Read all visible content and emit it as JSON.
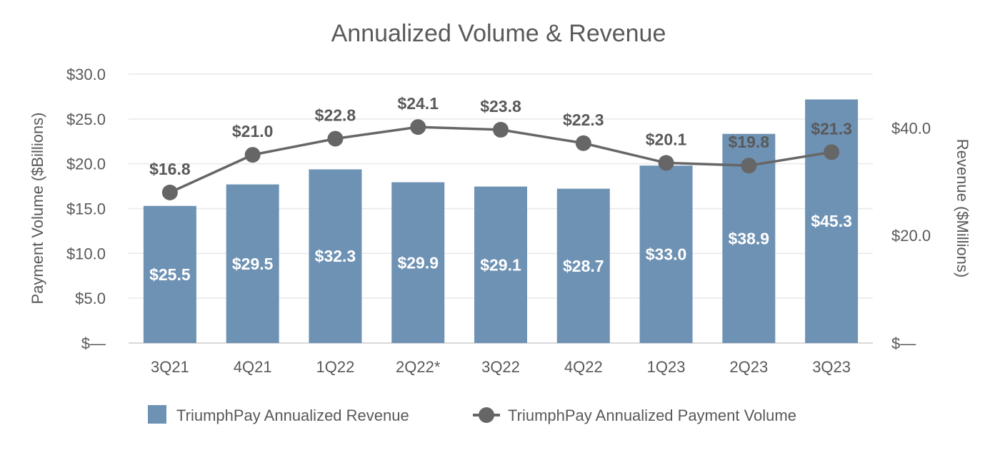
{
  "chart_data": {
    "type": "bar+line",
    "title": "Annualized Volume & Revenue",
    "categories": [
      "3Q21",
      "4Q21",
      "1Q22",
      "2Q22*",
      "3Q22",
      "4Q22",
      "1Q23",
      "2Q23",
      "3Q23"
    ],
    "series": [
      {
        "name": "TriumphPay Annualized Revenue",
        "type": "bar",
        "axis": "right",
        "values": [
          25.5,
          29.5,
          32.3,
          29.9,
          29.1,
          28.7,
          33.0,
          38.9,
          45.3
        ],
        "labels": [
          "$25.5",
          "$29.5",
          "$32.3",
          "$29.9",
          "$29.1",
          "$28.7",
          "$33.0",
          "$38.9",
          "$45.3"
        ],
        "color": "#6e92b4"
      },
      {
        "name": "TriumphPay Annualized Payment Volume",
        "type": "line",
        "axis": "left",
        "values": [
          16.8,
          21.0,
          22.8,
          24.1,
          23.8,
          22.3,
          20.1,
          19.8,
          21.3
        ],
        "labels": [
          "$16.8",
          "$21.0",
          "$22.8",
          "$24.1",
          "$23.8",
          "$22.3",
          "$20.1",
          "$19.8",
          "$21.3"
        ],
        "color": "#666666"
      }
    ],
    "ylabel_left": "Payment Volume ($Billions)",
    "ylabel_right": "Revenue ($Millions)",
    "ylim_left": [
      0,
      30
    ],
    "ylim_right": [
      0,
      50
    ],
    "yticks_left": [
      {
        "v": 0,
        "label": "$—"
      },
      {
        "v": 5,
        "label": "$5.0"
      },
      {
        "v": 10,
        "label": "$10.0"
      },
      {
        "v": 15,
        "label": "$15.0"
      },
      {
        "v": 20,
        "label": "$20.0"
      },
      {
        "v": 25,
        "label": "$25.0"
      },
      {
        "v": 30,
        "label": "$30.0"
      }
    ],
    "yticks_right": [
      {
        "v": 0,
        "label": "$—"
      },
      {
        "v": 20,
        "label": "$20.0"
      },
      {
        "v": 40,
        "label": "$40.0"
      }
    ],
    "grid": true,
    "legend_position": "bottom"
  }
}
